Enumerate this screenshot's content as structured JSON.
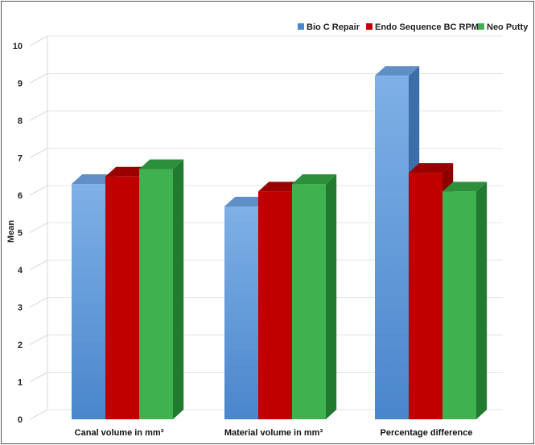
{
  "chart_data": {
    "type": "bar",
    "style": "3d-clustered-column",
    "title": "",
    "xlabel": "",
    "ylabel": "Mean",
    "ylim": [
      0,
      10
    ],
    "yticks": [
      0,
      1,
      2,
      3,
      4,
      5,
      6,
      7,
      8,
      9,
      10
    ],
    "grid": true,
    "legend_position": "top-right",
    "categories": [
      "Canal volume in mm³",
      "Material volume in mm³",
      "Percentage difference"
    ],
    "series": [
      {
        "name": "Bio C Repair",
        "values": [
          6.3,
          5.7,
          9.2
        ]
      },
      {
        "name": "Endo Sequence BC RPM",
        "values": [
          6.5,
          6.1,
          6.6
        ]
      },
      {
        "name": "Neo Putty",
        "values": [
          6.7,
          6.3,
          6.1
        ]
      }
    ],
    "colors": {
      "Bio C Repair": {
        "front_top": "#7fb0e6",
        "front_bottom": "#4a86cc",
        "side": "#3e6ea8",
        "top": "#5f8fc6"
      },
      "Endo Sequence BC RPM": {
        "front": "#c00000",
        "side": "#8c0000",
        "top": "#9a0000"
      },
      "Neo Putty": {
        "front": "#3fb24f",
        "side": "#217a30",
        "top": "#2d8f3c"
      }
    }
  }
}
